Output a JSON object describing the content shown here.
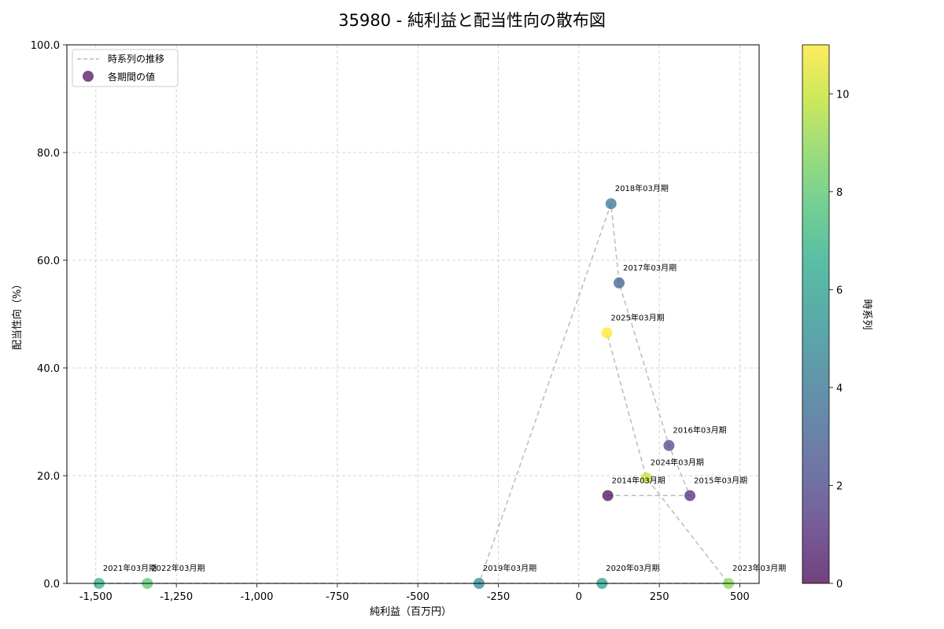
{
  "chart_data": {
    "type": "scatter",
    "title": "35980 - 純利益と配当性向の散布図",
    "xlabel": "純利益（百万円）",
    "ylabel": "配当性向（%）",
    "xlim": [
      -1590,
      560
    ],
    "ylim": [
      0,
      100
    ],
    "x_ticks": [
      -1500,
      -1250,
      -1000,
      -750,
      -500,
      -250,
      0,
      250,
      500
    ],
    "x_tick_labels": [
      "-1,500",
      "-1,250",
      "-1,000",
      "-750",
      "-500",
      "-250",
      "0",
      "250",
      "500"
    ],
    "y_ticks": [
      0,
      20,
      40,
      60,
      80,
      100
    ],
    "y_tick_labels": [
      "0.0",
      "20.0",
      "40.0",
      "60.0",
      "80.0",
      "100.0"
    ],
    "grid": true,
    "legend": {
      "position": "top-left",
      "entries": [
        {
          "label": "時系列の推移",
          "kind": "dashed-line"
        },
        {
          "label": "各期間の値",
          "kind": "marker"
        }
      ]
    },
    "colorbar": {
      "label": "時系列",
      "min": 0,
      "max": 11,
      "ticks": [
        0,
        2,
        4,
        6,
        8,
        10
      ],
      "tick_labels": [
        "0",
        "2",
        "4",
        "6",
        "8",
        "10"
      ]
    },
    "points": [
      {
        "label": "2014年03月期",
        "x": 90,
        "y": 16.3,
        "t": 0
      },
      {
        "label": "2015年03月期",
        "x": 345,
        "y": 16.3,
        "t": 1
      },
      {
        "label": "2016年03月期",
        "x": 280,
        "y": 25.6,
        "t": 2
      },
      {
        "label": "2017年03月期",
        "x": 125,
        "y": 55.8,
        "t": 3
      },
      {
        "label": "2018年03月期",
        "x": 100,
        "y": 70.5,
        "t": 4
      },
      {
        "label": "2019年03月期",
        "x": -310,
        "y": 0.0,
        "t": 5
      },
      {
        "label": "2020年03月期",
        "x": 72,
        "y": 0.0,
        "t": 6
      },
      {
        "label": "2021年03月期",
        "x": -1490,
        "y": 0.0,
        "t": 7
      },
      {
        "label": "2022年03月期",
        "x": -1340,
        "y": 0.0,
        "t": 8
      },
      {
        "label": "2023年03月期",
        "x": 465,
        "y": 0.0,
        "t": 9
      },
      {
        "label": "2024年03月期",
        "x": 210,
        "y": 19.6,
        "t": 10
      },
      {
        "label": "2025年03月期",
        "x": 87,
        "y": 46.5,
        "t": 11
      }
    ]
  }
}
